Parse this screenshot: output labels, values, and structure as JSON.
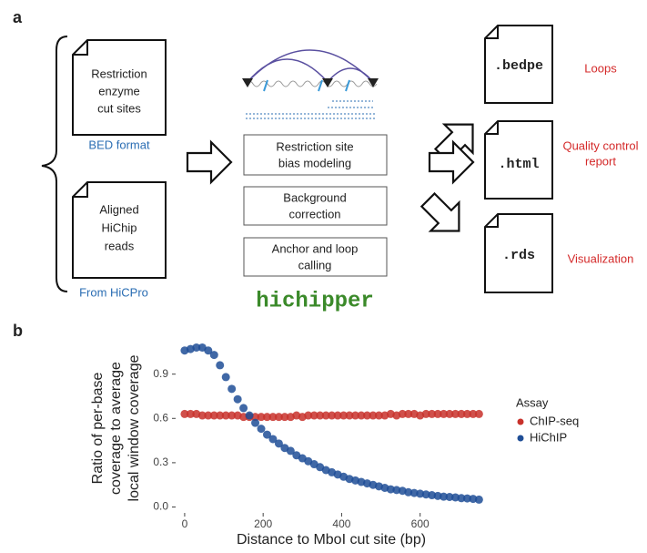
{
  "panel_a": {
    "label": "a",
    "inputs": [
      {
        "lines": [
          "Restriction",
          "enzyme",
          "cut sites"
        ],
        "caption": "BED format"
      },
      {
        "lines": [
          "Aligned",
          "HiChip",
          "reads"
        ],
        "caption": "From HiCPro"
      }
    ],
    "steps": [
      [
        "Restriction site",
        "bias modeling"
      ],
      [
        "Background",
        "correction"
      ],
      [
        "Anchor and loop",
        "calling"
      ]
    ],
    "tool": "hichipper",
    "outputs": [
      {
        "file": ".bedpe",
        "label": [
          "Loops"
        ]
      },
      {
        "file": ".html",
        "label": [
          "Quality control",
          "report"
        ]
      },
      {
        "file": ".rds",
        "label": [
          "Visualization"
        ]
      }
    ]
  },
  "panel_b_label": "b",
  "chart_data": {
    "type": "scatter",
    "xlabel": "Distance to MboI cut site (bp)",
    "ylabel": [
      "Ratio of per-base",
      "coverage to average",
      "local window coverage"
    ],
    "legend_title": "Assay",
    "x": [
      0,
      15,
      30,
      45,
      60,
      75,
      90,
      105,
      120,
      135,
      150,
      165,
      180,
      195,
      210,
      225,
      240,
      255,
      270,
      285,
      300,
      315,
      330,
      345,
      360,
      375,
      390,
      405,
      420,
      435,
      450,
      465,
      480,
      495,
      510,
      525,
      540,
      555,
      570,
      585,
      600,
      615,
      630,
      645,
      660,
      675,
      690,
      705,
      720,
      735,
      750
    ],
    "series": [
      {
        "name": "ChIP-seq",
        "color": "#c8312b",
        "values": [
          0.63,
          0.63,
          0.63,
          0.62,
          0.62,
          0.62,
          0.62,
          0.62,
          0.62,
          0.62,
          0.61,
          0.61,
          0.61,
          0.61,
          0.61,
          0.61,
          0.61,
          0.61,
          0.61,
          0.62,
          0.61,
          0.62,
          0.62,
          0.62,
          0.62,
          0.62,
          0.62,
          0.62,
          0.62,
          0.62,
          0.62,
          0.62,
          0.62,
          0.62,
          0.62,
          0.63,
          0.62,
          0.63,
          0.63,
          0.63,
          0.62,
          0.63,
          0.63,
          0.63,
          0.63,
          0.63,
          0.63,
          0.63,
          0.63,
          0.63,
          0.63
        ]
      },
      {
        "name": "HiChIP",
        "color": "#1f4e96",
        "values": [
          1.06,
          1.07,
          1.08,
          1.08,
          1.06,
          1.03,
          0.96,
          0.88,
          0.8,
          0.73,
          0.67,
          0.62,
          0.57,
          0.53,
          0.49,
          0.46,
          0.43,
          0.4,
          0.38,
          0.35,
          0.33,
          0.31,
          0.29,
          0.27,
          0.25,
          0.235,
          0.22,
          0.205,
          0.19,
          0.18,
          0.17,
          0.16,
          0.15,
          0.14,
          0.13,
          0.12,
          0.115,
          0.11,
          0.1,
          0.095,
          0.09,
          0.085,
          0.08,
          0.075,
          0.07,
          0.068,
          0.065,
          0.06,
          0.058,
          0.055,
          0.05
        ]
      }
    ],
    "xlim": [
      -23,
      770
    ],
    "ylim": [
      -0.04,
      1.12
    ],
    "xticks": [
      0,
      200,
      400,
      600
    ],
    "yticks": [
      {
        "value": 0,
        "label": "0.0"
      },
      0.3,
      0.6,
      0.9
    ]
  }
}
